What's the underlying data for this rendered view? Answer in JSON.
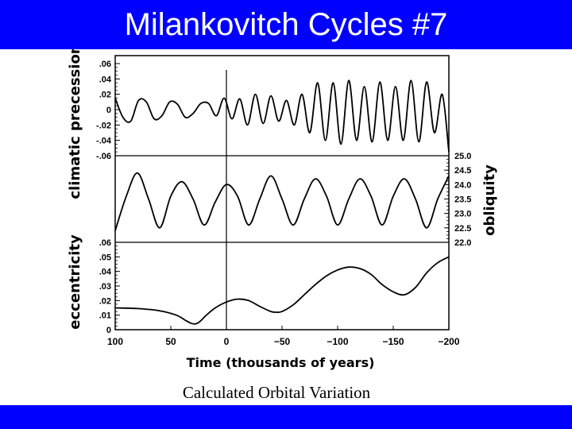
{
  "slide": {
    "title": "Milankovitch Cycles #7",
    "caption": "Calculated Orbital Variation",
    "colors": {
      "header": "#0000ff",
      "footer": "#0000ff",
      "background": "#ffffff",
      "ink": "#000000"
    }
  },
  "chart_data": {
    "type": "line",
    "x_axis": {
      "label": "Time (thousands of years)",
      "range": [
        100,
        -200
      ],
      "ticks": [
        "100",
        "50",
        "0",
        "−50",
        "−100",
        "−150",
        "−200"
      ],
      "tick_values": [
        100,
        50,
        0,
        -50,
        -100,
        -150,
        -200
      ],
      "present_marker": 0
    },
    "panels": [
      {
        "name": "climatic precession",
        "axis_side": "left",
        "ylim": [
          -0.06,
          0.06
        ],
        "ticks": [
          ".06",
          ".04",
          ".02",
          "0",
          "-.02",
          "-.04",
          "-.06"
        ],
        "tick_values": [
          0.06,
          0.04,
          0.02,
          0,
          -0.02,
          -0.04,
          -0.06
        ],
        "series": {
          "x": [
            100,
            93,
            86,
            79,
            72,
            65,
            58,
            51,
            44,
            37,
            30,
            23,
            16,
            9,
            2,
            -5,
            -12,
            -19,
            -26,
            -33,
            -40,
            -47,
            -54,
            -61,
            -68,
            -75,
            -82,
            -89,
            -96,
            -103,
            -110,
            -117,
            -124,
            -131,
            -138,
            -145,
            -152,
            -159,
            -166,
            -173,
            -180,
            -187,
            -194,
            -200
          ],
          "y": [
            0.015,
            -0.01,
            -0.015,
            0.012,
            0.01,
            -0.012,
            -0.008,
            0.01,
            0.007,
            -0.01,
            -0.005,
            0.008,
            0.008,
            -0.008,
            0.015,
            -0.012,
            0.014,
            -0.02,
            0.02,
            -0.018,
            0.018,
            -0.015,
            0.012,
            -0.02,
            0.02,
            -0.03,
            0.035,
            -0.04,
            0.035,
            -0.045,
            0.038,
            -0.04,
            0.03,
            -0.042,
            0.036,
            -0.04,
            0.03,
            -0.04,
            0.038,
            -0.042,
            0.036,
            -0.03,
            0.02,
            -0.055
          ]
        }
      },
      {
        "name": "obliquity",
        "axis_side": "right",
        "ylim": [
          22.0,
          25.0
        ],
        "ticks": [
          "25.0",
          "24.5",
          "24.0",
          "23.5",
          "23.0",
          "22.5",
          "22.0"
        ],
        "tick_values": [
          25.0,
          24.5,
          24.0,
          23.5,
          23.0,
          22.5,
          22.0
        ],
        "series": {
          "x": [
            100,
            90,
            80,
            70,
            60,
            50,
            40,
            30,
            20,
            10,
            0,
            -10,
            -20,
            -30,
            -40,
            -50,
            -60,
            -70,
            -80,
            -90,
            -100,
            -110,
            -120,
            -130,
            -140,
            -150,
            -160,
            -170,
            -180,
            -190,
            -200
          ],
          "y": [
            22.4,
            23.6,
            24.4,
            23.5,
            22.5,
            23.6,
            24.1,
            23.5,
            22.6,
            23.4,
            24.0,
            23.6,
            22.6,
            23.5,
            24.3,
            23.5,
            22.6,
            23.5,
            24.2,
            23.6,
            22.6,
            23.5,
            24.2,
            23.6,
            22.6,
            23.6,
            24.2,
            23.5,
            22.5,
            23.5,
            24.3
          ]
        }
      },
      {
        "name": "eccentricity",
        "axis_side": "left",
        "ylim": [
          0,
          0.06
        ],
        "ticks": [
          ".06",
          ".05",
          ".04",
          ".03",
          ".02",
          ".01",
          "0"
        ],
        "tick_values": [
          0.06,
          0.05,
          0.04,
          0.03,
          0.02,
          0.01,
          0
        ],
        "series": {
          "x": [
            100,
            80,
            60,
            45,
            37,
            32,
            28,
            24,
            18,
            10,
            0,
            -10,
            -20,
            -30,
            -40,
            -45,
            -50,
            -60,
            -70,
            -80,
            -90,
            -100,
            -110,
            -120,
            -130,
            -140,
            -150,
            -160,
            -170,
            -180,
            -190,
            -200
          ],
          "y": [
            0.015,
            0.0145,
            0.013,
            0.01,
            0.0065,
            0.0045,
            0.004,
            0.0055,
            0.01,
            0.015,
            0.019,
            0.021,
            0.02,
            0.016,
            0.0125,
            0.012,
            0.0125,
            0.017,
            0.024,
            0.031,
            0.037,
            0.041,
            0.043,
            0.042,
            0.038,
            0.031,
            0.026,
            0.024,
            0.029,
            0.039,
            0.046,
            0.05
          ]
        }
      }
    ]
  }
}
